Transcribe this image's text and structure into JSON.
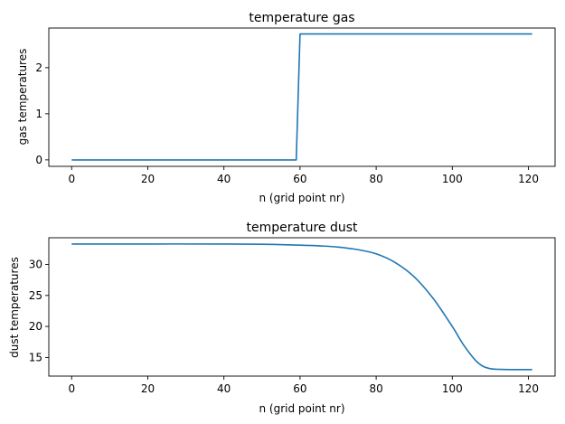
{
  "chart_data": [
    {
      "type": "line",
      "title": "temperature gas",
      "xlabel": "n (grid point nr)",
      "ylabel": "gas temperatures",
      "xlim": [
        -6,
        127
      ],
      "ylim": [
        -0.14,
        2.86
      ],
      "xticks": [
        0,
        20,
        40,
        60,
        80,
        100,
        120
      ],
      "yticks": [
        0,
        1,
        2
      ],
      "grid": false,
      "series": [
        {
          "color": "#1f77b4",
          "x": [
            0,
            59,
            60,
            121
          ],
          "y": [
            0,
            0,
            2.73,
            2.73
          ]
        }
      ]
    },
    {
      "type": "line",
      "title": "temperature dust",
      "xlabel": "n (grid point nr)",
      "ylabel": "dust temperatures",
      "xlim": [
        -6,
        127
      ],
      "ylim": [
        12,
        34.3
      ],
      "xticks": [
        0,
        20,
        40,
        60,
        80,
        100,
        120
      ],
      "yticks": [
        15,
        20,
        25,
        30
      ],
      "grid": false,
      "series": [
        {
          "color": "#1f77b4",
          "x": [
            0,
            20,
            40,
            50,
            60,
            65,
            70,
            75,
            80,
            85,
            90,
            95,
            100,
            103,
            106,
            108,
            110,
            112,
            115,
            121
          ],
          "y": [
            33.3,
            33.3,
            33.3,
            33.25,
            33.1,
            33.0,
            32.8,
            32.4,
            31.7,
            30.3,
            28.0,
            24.5,
            20.0,
            17.0,
            14.6,
            13.6,
            13.2,
            13.1,
            13.05,
            13.05
          ]
        }
      ]
    }
  ]
}
